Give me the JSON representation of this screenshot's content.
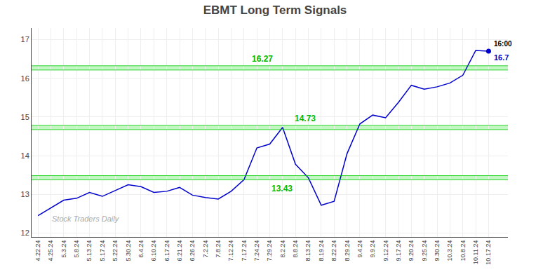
{
  "chart_data": {
    "type": "line",
    "title": "EBMT Long Term Signals",
    "categories": [
      "4.22.24",
      "4.25.24",
      "5.3.24",
      "5.8.24",
      "5.13.24",
      "5.17.24",
      "5.22.24",
      "5.30.24",
      "6.4.24",
      "6.10.24",
      "6.17.24",
      "6.21.24",
      "6.26.24",
      "7.2.24",
      "7.8.24",
      "7.12.24",
      "7.17.24",
      "7.24.24",
      "7.29.24",
      "8.2.24",
      "8.8.24",
      "8.13.24",
      "8.19.24",
      "8.22.24",
      "8.29.24",
      "9.4.24",
      "9.9.24",
      "9.12.24",
      "9.17.24",
      "9.20.24",
      "9.25.24",
      "9.30.24",
      "10.3.24",
      "10.8.24",
      "10.11.24",
      "10.17.24"
    ],
    "values": [
      12.45,
      12.65,
      12.85,
      12.9,
      13.05,
      12.95,
      13.1,
      13.25,
      13.2,
      13.05,
      13.08,
      13.18,
      12.98,
      12.92,
      12.88,
      13.08,
      13.38,
      14.2,
      14.3,
      14.73,
      13.78,
      13.43,
      12.72,
      12.82,
      14.05,
      14.82,
      15.05,
      14.98,
      15.38,
      15.82,
      15.72,
      15.78,
      15.88,
      16.08,
      16.72,
      16.7
    ],
    "color": "#0000cc",
    "ylim": [
      11.9,
      17.3
    ],
    "yticks": [
      12,
      13,
      14,
      15,
      16,
      17
    ],
    "grid": true,
    "hlines": [
      {
        "y": 16.27,
        "label": "16.27",
        "color": "#00bb00"
      },
      {
        "y": 14.73,
        "label": "14.73",
        "color": "#00bb00"
      },
      {
        "y": 13.43,
        "label": "13.43",
        "color": "#00bb00"
      }
    ],
    "annotations": [
      {
        "text": "16:00",
        "x": "10.17.24",
        "y": 16.7,
        "color": "#000000"
      },
      {
        "text": "16.7",
        "x": "10.17.24",
        "y": 16.7,
        "color": "#0000cc"
      }
    ],
    "watermark": "Stock Traders Daily"
  }
}
